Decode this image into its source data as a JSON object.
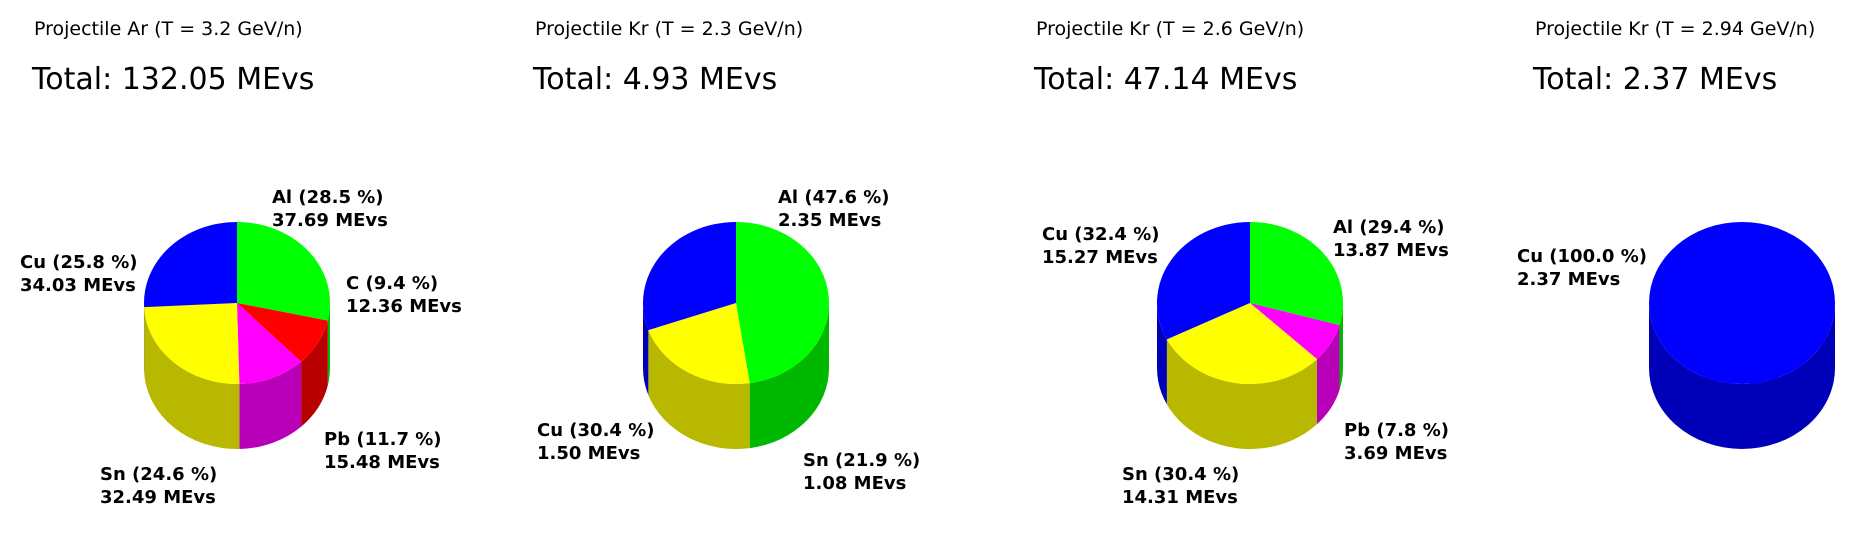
{
  "chart_data": [
    {
      "type": "pie",
      "header": "Projectile Ar (T =  3.2 GeV/n)",
      "title": "Total: 132.05 MEvs",
      "slices": [
        {
          "name": "Al",
          "percent": 28.5,
          "value": 37.69,
          "label_top": "Al (28.5 %)",
          "label_bottom": "37.69 MEvs",
          "color": "#00ff00"
        },
        {
          "name": "C",
          "percent": 9.4,
          "value": 12.36,
          "label_top": "C (9.4 %)",
          "label_bottom": "12.36 MEvs",
          "color": "#ff0000"
        },
        {
          "name": "Pb",
          "percent": 11.7,
          "value": 15.48,
          "label_top": "Pb (11.7 %)",
          "label_bottom": "15.48 MEvs",
          "color": "#ff00ff"
        },
        {
          "name": "Sn",
          "percent": 24.6,
          "value": 32.49,
          "label_top": "Sn (24.6 %)",
          "label_bottom": "32.49 MEvs",
          "color": "#ffff00"
        },
        {
          "name": "Cu",
          "percent": 25.8,
          "value": 34.03,
          "label_top": "Cu (25.8 %)",
          "label_bottom": "34.03 MEvs",
          "color": "#0000ff"
        }
      ]
    },
    {
      "type": "pie",
      "header": "Projectile Kr (T =  2.3 GeV/n)",
      "title": "Total: 4.93 MEvs",
      "slices": [
        {
          "name": "Al",
          "percent": 47.6,
          "value": 2.35,
          "label_top": "Al (47.6 %)",
          "label_bottom": "2.35 MEvs",
          "color": "#00ff00"
        },
        {
          "name": "Sn",
          "percent": 21.9,
          "value": 1.08,
          "label_top": "Sn (21.9 %)",
          "label_bottom": "1.08 MEvs",
          "color": "#ffff00"
        },
        {
          "name": "Cu",
          "percent": 30.4,
          "value": 1.5,
          "label_top": "Cu (30.4 %)",
          "label_bottom": "1.50 MEvs",
          "color": "#0000ff"
        }
      ]
    },
    {
      "type": "pie",
      "header": "Projectile Kr (T =  2.6 GeV/n)",
      "title": "Total: 47.14 MEvs",
      "slices": [
        {
          "name": "Al",
          "percent": 29.4,
          "value": 13.87,
          "label_top": "Al (29.4 %)",
          "label_bottom": "13.87 MEvs",
          "color": "#00ff00"
        },
        {
          "name": "Pb",
          "percent": 7.8,
          "value": 3.69,
          "label_top": "Pb (7.8 %)",
          "label_bottom": "3.69 MEvs",
          "color": "#ff00ff"
        },
        {
          "name": "Sn",
          "percent": 30.4,
          "value": 14.31,
          "label_top": "Sn (30.4 %)",
          "label_bottom": "14.31 MEvs",
          "color": "#ffff00"
        },
        {
          "name": "Cu",
          "percent": 32.4,
          "value": 15.27,
          "label_top": "Cu (32.4 %)",
          "label_bottom": "15.27 MEvs",
          "color": "#0000ff"
        }
      ]
    },
    {
      "type": "pie",
      "header": "Projectile Kr (T =  2.94 GeV/n)",
      "title": "Total: 2.37 MEvs",
      "slices": [
        {
          "name": "Cu",
          "percent": 100.0,
          "value": 2.37,
          "label_top": "Cu (100.0 %)",
          "label_bottom": "2.37 MEvs",
          "color": "#0000ff"
        }
      ]
    }
  ]
}
